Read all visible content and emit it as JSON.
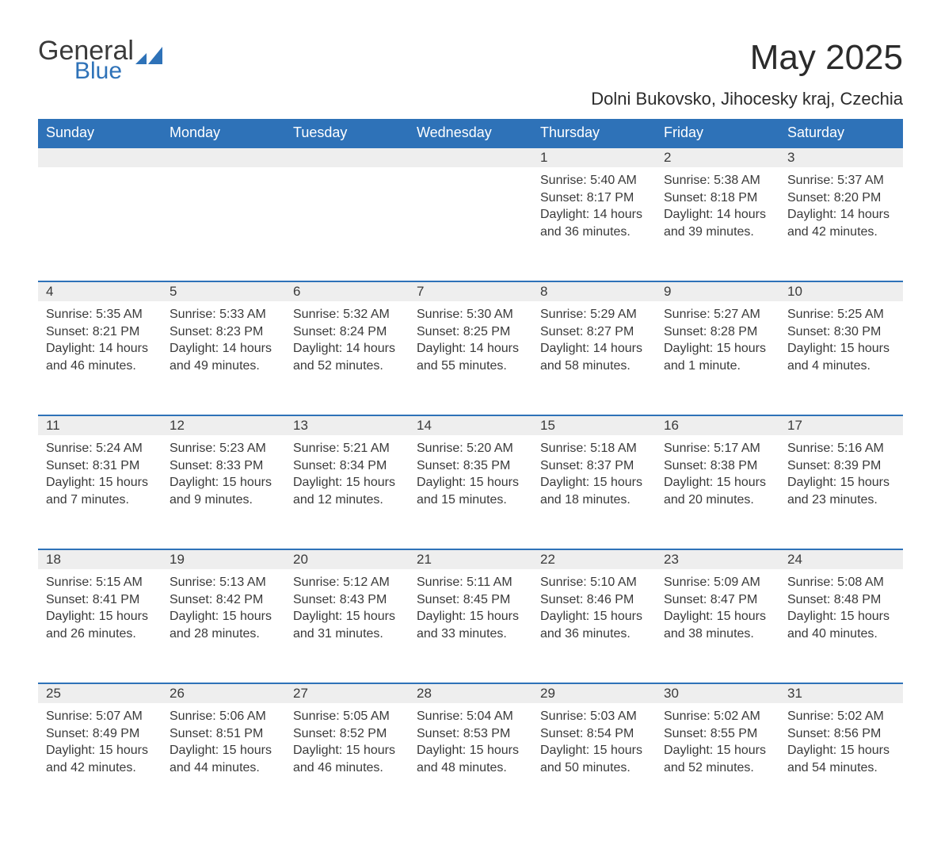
{
  "logo": {
    "top": "General",
    "bottom": "Blue"
  },
  "title": "May 2025",
  "subtitle": "Dolni Bukovsko, Jihocesky kraj, Czechia",
  "colors": {
    "header_bg": "#2e72b8",
    "header_fg": "#ffffff",
    "row_border": "#2e72b8",
    "daynum_bg": "#eeeeee",
    "text": "#3a3a3a",
    "page_bg": "#ffffff",
    "logo_blue": "#2e72b8"
  },
  "weekdays": [
    "Sunday",
    "Monday",
    "Tuesday",
    "Wednesday",
    "Thursday",
    "Friday",
    "Saturday"
  ],
  "weeks": [
    [
      {
        "day": "",
        "lines": []
      },
      {
        "day": "",
        "lines": []
      },
      {
        "day": "",
        "lines": []
      },
      {
        "day": "",
        "lines": []
      },
      {
        "day": "1",
        "lines": [
          "Sunrise: 5:40 AM",
          "Sunset: 8:17 PM",
          "Daylight: 14 hours and 36 minutes."
        ]
      },
      {
        "day": "2",
        "lines": [
          "Sunrise: 5:38 AM",
          "Sunset: 8:18 PM",
          "Daylight: 14 hours and 39 minutes."
        ]
      },
      {
        "day": "3",
        "lines": [
          "Sunrise: 5:37 AM",
          "Sunset: 8:20 PM",
          "Daylight: 14 hours and 42 minutes."
        ]
      }
    ],
    [
      {
        "day": "4",
        "lines": [
          "Sunrise: 5:35 AM",
          "Sunset: 8:21 PM",
          "Daylight: 14 hours and 46 minutes."
        ]
      },
      {
        "day": "5",
        "lines": [
          "Sunrise: 5:33 AM",
          "Sunset: 8:23 PM",
          "Daylight: 14 hours and 49 minutes."
        ]
      },
      {
        "day": "6",
        "lines": [
          "Sunrise: 5:32 AM",
          "Sunset: 8:24 PM",
          "Daylight: 14 hours and 52 minutes."
        ]
      },
      {
        "day": "7",
        "lines": [
          "Sunrise: 5:30 AM",
          "Sunset: 8:25 PM",
          "Daylight: 14 hours and 55 minutes."
        ]
      },
      {
        "day": "8",
        "lines": [
          "Sunrise: 5:29 AM",
          "Sunset: 8:27 PM",
          "Daylight: 14 hours and 58 minutes."
        ]
      },
      {
        "day": "9",
        "lines": [
          "Sunrise: 5:27 AM",
          "Sunset: 8:28 PM",
          "Daylight: 15 hours and 1 minute."
        ]
      },
      {
        "day": "10",
        "lines": [
          "Sunrise: 5:25 AM",
          "Sunset: 8:30 PM",
          "Daylight: 15 hours and 4 minutes."
        ]
      }
    ],
    [
      {
        "day": "11",
        "lines": [
          "Sunrise: 5:24 AM",
          "Sunset: 8:31 PM",
          "Daylight: 15 hours and 7 minutes."
        ]
      },
      {
        "day": "12",
        "lines": [
          "Sunrise: 5:23 AM",
          "Sunset: 8:33 PM",
          "Daylight: 15 hours and 9 minutes."
        ]
      },
      {
        "day": "13",
        "lines": [
          "Sunrise: 5:21 AM",
          "Sunset: 8:34 PM",
          "Daylight: 15 hours and 12 minutes."
        ]
      },
      {
        "day": "14",
        "lines": [
          "Sunrise: 5:20 AM",
          "Sunset: 8:35 PM",
          "Daylight: 15 hours and 15 minutes."
        ]
      },
      {
        "day": "15",
        "lines": [
          "Sunrise: 5:18 AM",
          "Sunset: 8:37 PM",
          "Daylight: 15 hours and 18 minutes."
        ]
      },
      {
        "day": "16",
        "lines": [
          "Sunrise: 5:17 AM",
          "Sunset: 8:38 PM",
          "Daylight: 15 hours and 20 minutes."
        ]
      },
      {
        "day": "17",
        "lines": [
          "Sunrise: 5:16 AM",
          "Sunset: 8:39 PM",
          "Daylight: 15 hours and 23 minutes."
        ]
      }
    ],
    [
      {
        "day": "18",
        "lines": [
          "Sunrise: 5:15 AM",
          "Sunset: 8:41 PM",
          "Daylight: 15 hours and 26 minutes."
        ]
      },
      {
        "day": "19",
        "lines": [
          "Sunrise: 5:13 AM",
          "Sunset: 8:42 PM",
          "Daylight: 15 hours and 28 minutes."
        ]
      },
      {
        "day": "20",
        "lines": [
          "Sunrise: 5:12 AM",
          "Sunset: 8:43 PM",
          "Daylight: 15 hours and 31 minutes."
        ]
      },
      {
        "day": "21",
        "lines": [
          "Sunrise: 5:11 AM",
          "Sunset: 8:45 PM",
          "Daylight: 15 hours and 33 minutes."
        ]
      },
      {
        "day": "22",
        "lines": [
          "Sunrise: 5:10 AM",
          "Sunset: 8:46 PM",
          "Daylight: 15 hours and 36 minutes."
        ]
      },
      {
        "day": "23",
        "lines": [
          "Sunrise: 5:09 AM",
          "Sunset: 8:47 PM",
          "Daylight: 15 hours and 38 minutes."
        ]
      },
      {
        "day": "24",
        "lines": [
          "Sunrise: 5:08 AM",
          "Sunset: 8:48 PM",
          "Daylight: 15 hours and 40 minutes."
        ]
      }
    ],
    [
      {
        "day": "25",
        "lines": [
          "Sunrise: 5:07 AM",
          "Sunset: 8:49 PM",
          "Daylight: 15 hours and 42 minutes."
        ]
      },
      {
        "day": "26",
        "lines": [
          "Sunrise: 5:06 AM",
          "Sunset: 8:51 PM",
          "Daylight: 15 hours and 44 minutes."
        ]
      },
      {
        "day": "27",
        "lines": [
          "Sunrise: 5:05 AM",
          "Sunset: 8:52 PM",
          "Daylight: 15 hours and 46 minutes."
        ]
      },
      {
        "day": "28",
        "lines": [
          "Sunrise: 5:04 AM",
          "Sunset: 8:53 PM",
          "Daylight: 15 hours and 48 minutes."
        ]
      },
      {
        "day": "29",
        "lines": [
          "Sunrise: 5:03 AM",
          "Sunset: 8:54 PM",
          "Daylight: 15 hours and 50 minutes."
        ]
      },
      {
        "day": "30",
        "lines": [
          "Sunrise: 5:02 AM",
          "Sunset: 8:55 PM",
          "Daylight: 15 hours and 52 minutes."
        ]
      },
      {
        "day": "31",
        "lines": [
          "Sunrise: 5:02 AM",
          "Sunset: 8:56 PM",
          "Daylight: 15 hours and 54 minutes."
        ]
      }
    ]
  ]
}
